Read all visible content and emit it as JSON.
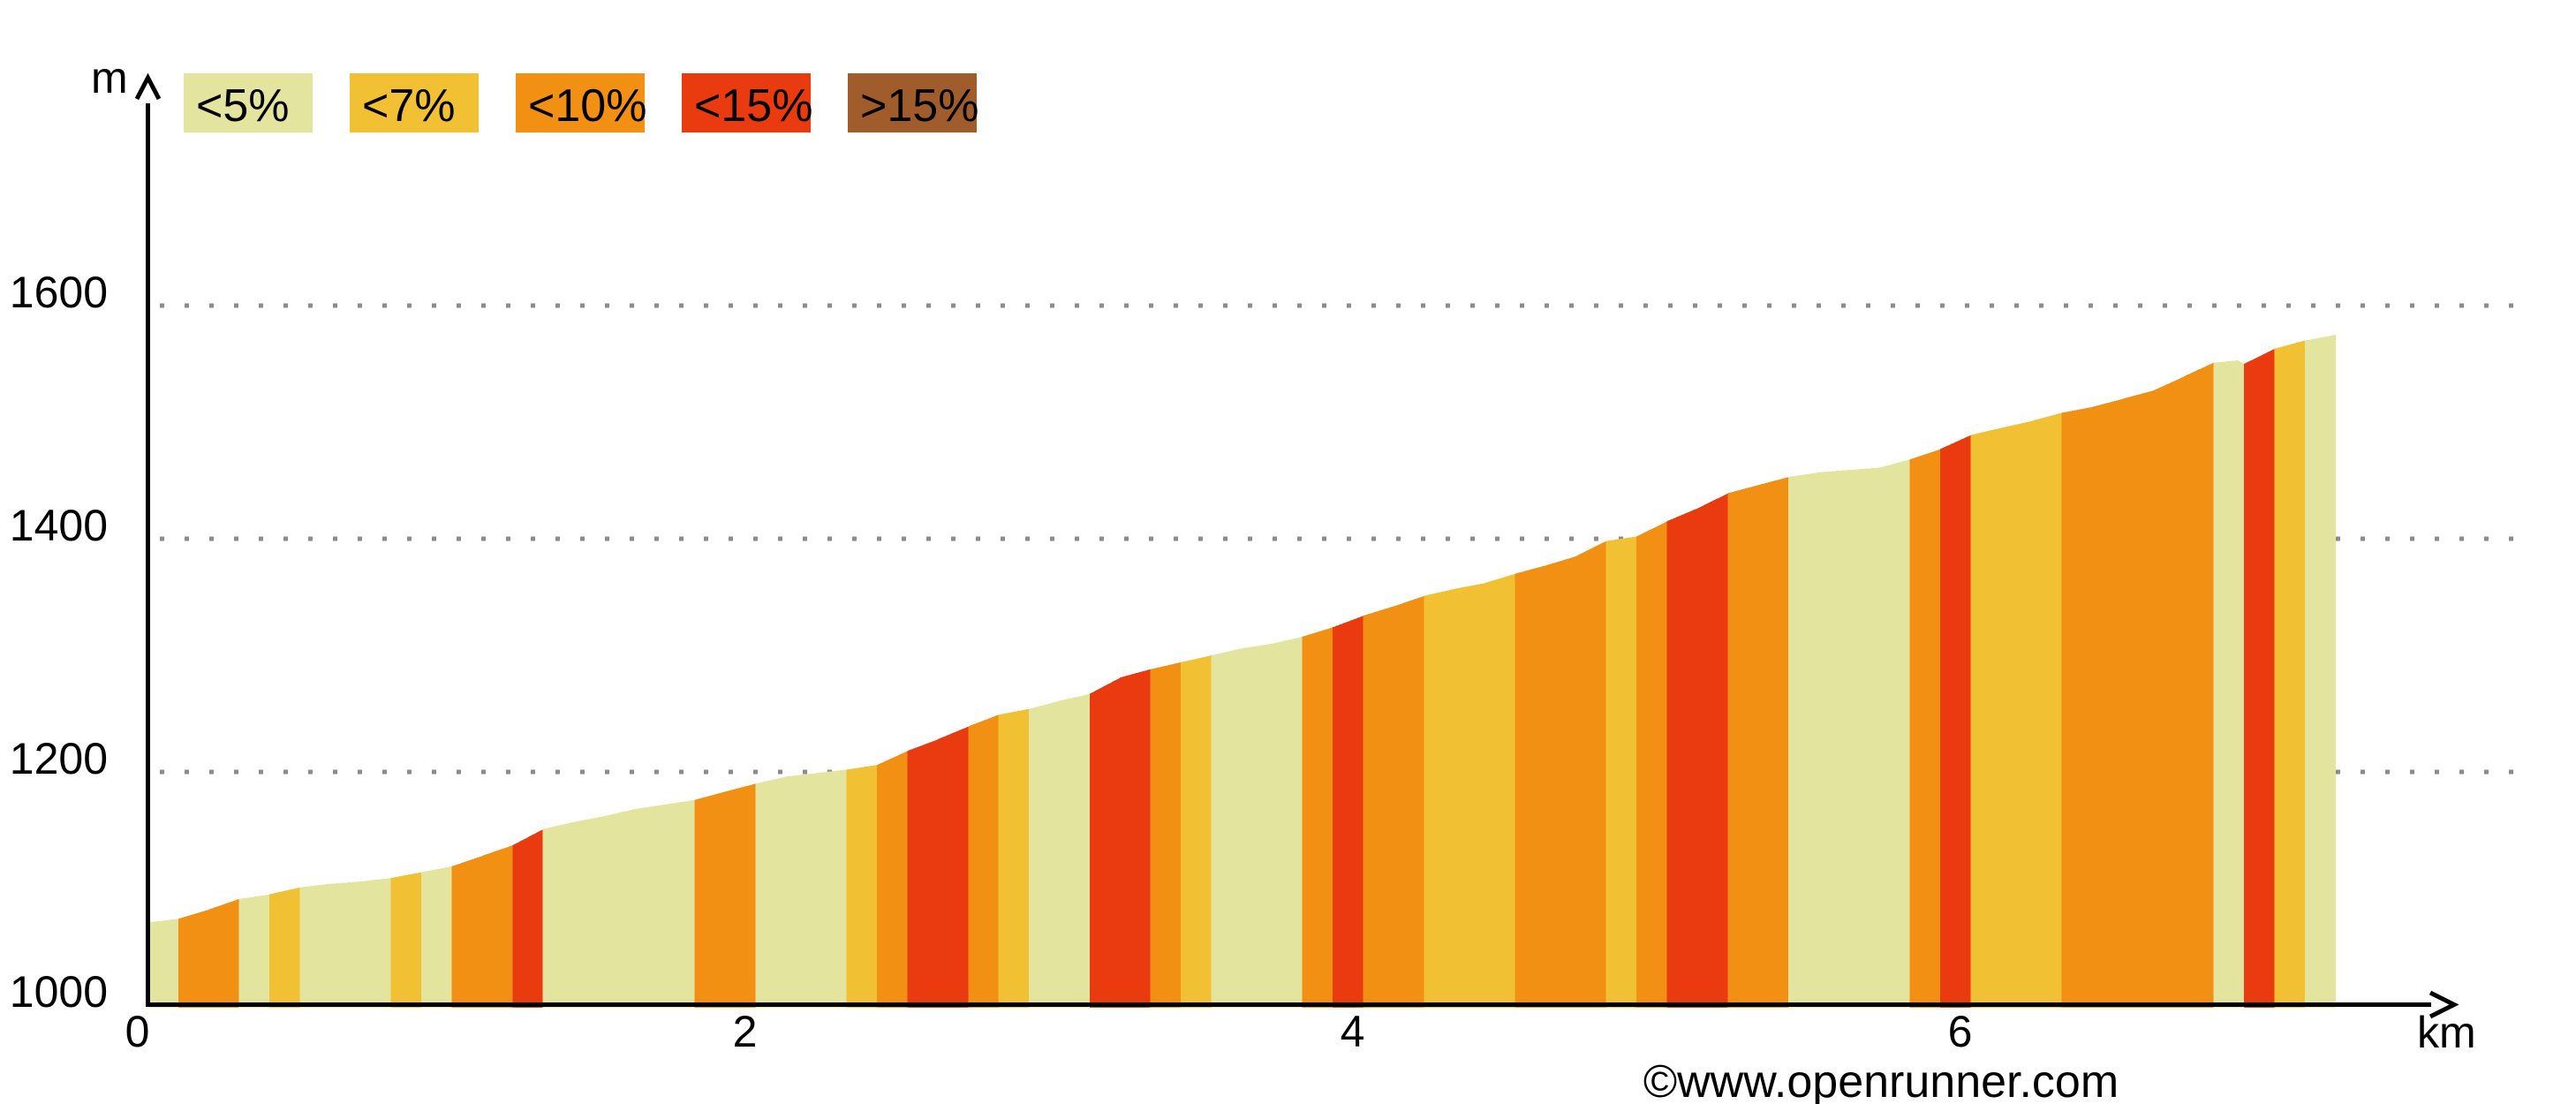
{
  "chart_data": {
    "type": "area",
    "title": "",
    "ylabel": "m",
    "xlabel": "km",
    "watermark": "©www.openrunner.com",
    "x_ticks": [
      0,
      2,
      4,
      6
    ],
    "y_ticks": [
      1000,
      1200,
      1400,
      1600
    ],
    "gridline_elevations": [
      1200,
      1400,
      1600
    ],
    "xlim_km": [
      0,
      7.55
    ],
    "ylim_m": [
      1000,
      1640
    ],
    "grid_style": "dotted-horizontal",
    "legend": {
      "position": "top-left",
      "items": [
        {
          "key": "lt5",
          "label": "<5%",
          "color": "#e3e49e"
        },
        {
          "key": "lt7",
          "label": "<7%",
          "color": "#f2c133"
        },
        {
          "key": "lt10",
          "label": "<10%",
          "color": "#f19013"
        },
        {
          "key": "lt15",
          "label": "<15%",
          "color": "#e93a10"
        },
        {
          "key": "gt15",
          "label": ">15%",
          "color": "#a05c2b"
        }
      ]
    },
    "axis_color": "#000000",
    "grid_dot_color": "#8c8c8c",
    "segment_length_km": 0.1,
    "segment_grades": [
      "lt5",
      "lt10",
      "lt10",
      "lt5",
      "lt7",
      "lt5",
      "lt5",
      "lt5",
      "lt7",
      "lt5",
      "lt10",
      "lt10",
      "lt15",
      "lt5",
      "lt5",
      "lt5",
      "lt5",
      "lt5",
      "lt10",
      "lt10",
      "lt5",
      "lt5",
      "lt5",
      "lt7",
      "lt10",
      "lt15",
      "lt15",
      "lt10",
      "lt7",
      "lt5",
      "lt5",
      "lt15",
      "lt15",
      "lt10",
      "lt7",
      "lt5",
      "lt5",
      "lt5",
      "lt10",
      "lt15",
      "lt10",
      "lt10",
      "lt7",
      "lt7",
      "lt7",
      "lt10",
      "lt10",
      "lt10",
      "lt7",
      "lt10",
      "lt15",
      "lt15",
      "lt10",
      "lt10",
      "lt5",
      "lt5",
      "lt5",
      "lt5",
      "lt10",
      "lt15",
      "lt7",
      "lt7",
      "lt7",
      "lt10",
      "lt10",
      "lt10",
      "lt10",
      "lt10",
      "lt5",
      "lt15",
      "lt7",
      "lt5"
    ],
    "profile_points": [
      {
        "km": 0.0,
        "elev_m": 1071
      },
      {
        "km": 0.1,
        "elev_m": 1074
      },
      {
        "km": 0.2,
        "elev_m": 1082
      },
      {
        "km": 0.3,
        "elev_m": 1091
      },
      {
        "km": 0.4,
        "elev_m": 1095
      },
      {
        "km": 0.5,
        "elev_m": 1101
      },
      {
        "km": 0.6,
        "elev_m": 1104
      },
      {
        "km": 0.7,
        "elev_m": 1106
      },
      {
        "km": 0.8,
        "elev_m": 1109
      },
      {
        "km": 0.9,
        "elev_m": 1114
      },
      {
        "km": 1.0,
        "elev_m": 1119
      },
      {
        "km": 1.1,
        "elev_m": 1128
      },
      {
        "km": 1.2,
        "elev_m": 1137
      },
      {
        "km": 1.3,
        "elev_m": 1151
      },
      {
        "km": 1.4,
        "elev_m": 1157
      },
      {
        "km": 1.5,
        "elev_m": 1162
      },
      {
        "km": 1.6,
        "elev_m": 1168
      },
      {
        "km": 1.7,
        "elev_m": 1172
      },
      {
        "km": 1.8,
        "elev_m": 1176
      },
      {
        "km": 1.9,
        "elev_m": 1183
      },
      {
        "km": 2.0,
        "elev_m": 1190
      },
      {
        "km": 2.1,
        "elev_m": 1196
      },
      {
        "km": 2.2,
        "elev_m": 1199
      },
      {
        "km": 2.3,
        "elev_m": 1202
      },
      {
        "km": 2.4,
        "elev_m": 1206
      },
      {
        "km": 2.5,
        "elev_m": 1218
      },
      {
        "km": 2.6,
        "elev_m": 1228
      },
      {
        "km": 2.7,
        "elev_m": 1239
      },
      {
        "km": 2.8,
        "elev_m": 1249
      },
      {
        "km": 2.9,
        "elev_m": 1254
      },
      {
        "km": 3.0,
        "elev_m": 1261
      },
      {
        "km": 3.1,
        "elev_m": 1267
      },
      {
        "km": 3.2,
        "elev_m": 1281
      },
      {
        "km": 3.3,
        "elev_m": 1288
      },
      {
        "km": 3.4,
        "elev_m": 1294
      },
      {
        "km": 3.5,
        "elev_m": 1300
      },
      {
        "km": 3.6,
        "elev_m": 1306
      },
      {
        "km": 3.7,
        "elev_m": 1310
      },
      {
        "km": 3.8,
        "elev_m": 1316
      },
      {
        "km": 3.9,
        "elev_m": 1324
      },
      {
        "km": 4.0,
        "elev_m": 1334
      },
      {
        "km": 4.1,
        "elev_m": 1342
      },
      {
        "km": 4.2,
        "elev_m": 1351
      },
      {
        "km": 4.3,
        "elev_m": 1357
      },
      {
        "km": 4.4,
        "elev_m": 1362
      },
      {
        "km": 4.5,
        "elev_m": 1370
      },
      {
        "km": 4.6,
        "elev_m": 1377
      },
      {
        "km": 4.7,
        "elev_m": 1385
      },
      {
        "km": 4.8,
        "elev_m": 1398
      },
      {
        "km": 4.9,
        "elev_m": 1402
      },
      {
        "km": 5.0,
        "elev_m": 1415
      },
      {
        "km": 5.1,
        "elev_m": 1426
      },
      {
        "km": 5.2,
        "elev_m": 1439
      },
      {
        "km": 5.3,
        "elev_m": 1446
      },
      {
        "km": 5.4,
        "elev_m": 1453
      },
      {
        "km": 5.5,
        "elev_m": 1457
      },
      {
        "km": 5.6,
        "elev_m": 1459
      },
      {
        "km": 5.7,
        "elev_m": 1461
      },
      {
        "km": 5.8,
        "elev_m": 1468
      },
      {
        "km": 5.9,
        "elev_m": 1477
      },
      {
        "km": 6.0,
        "elev_m": 1489
      },
      {
        "km": 6.1,
        "elev_m": 1495
      },
      {
        "km": 6.2,
        "elev_m": 1501
      },
      {
        "km": 6.3,
        "elev_m": 1508
      },
      {
        "km": 6.4,
        "elev_m": 1513
      },
      {
        "km": 6.5,
        "elev_m": 1520
      },
      {
        "km": 6.6,
        "elev_m": 1527
      },
      {
        "km": 6.7,
        "elev_m": 1539
      },
      {
        "km": 6.8,
        "elev_m": 1551
      },
      {
        "km": 6.88,
        "elev_m": 1553
      },
      {
        "km": 6.9,
        "elev_m": 1550
      },
      {
        "km": 7.0,
        "elev_m": 1563
      },
      {
        "km": 7.1,
        "elev_m": 1570
      },
      {
        "km": 7.2,
        "elev_m": 1575
      }
    ]
  }
}
